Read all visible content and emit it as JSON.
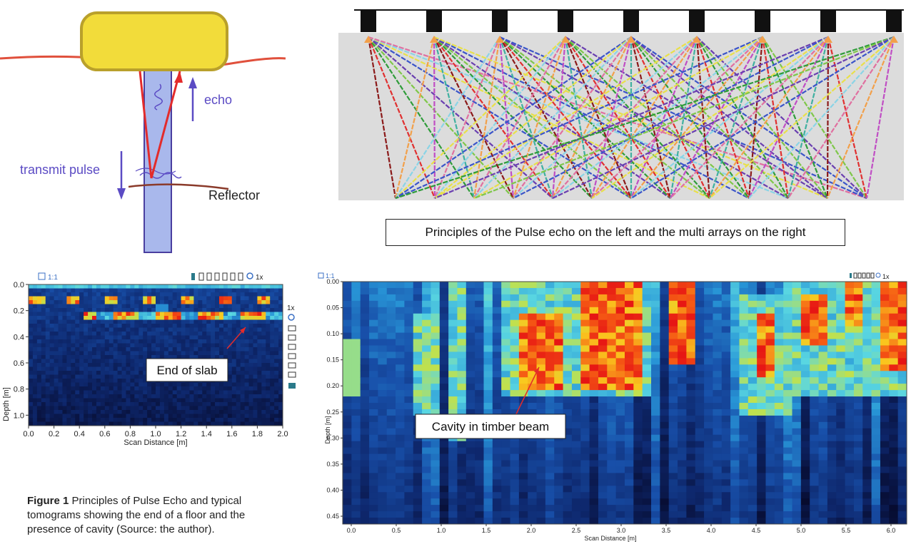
{
  "pulse_echo": {
    "labels": {
      "echo": "echo",
      "transmit": "transmit pulse",
      "reflector": "Reflector"
    },
    "colors": {
      "block": "#f2dc3a",
      "block_edge": "#b9a02b",
      "surface": "#e0503c",
      "beam": "#a9b8ec",
      "beam_edge": "#4a3fa0",
      "ray": "#e32b2b",
      "arrow": "#5b4bc4"
    }
  },
  "multi_array": {
    "sensor_count": 9,
    "colors": {
      "bar": "#111111",
      "field": "#dcdcdc",
      "source": "#f2a04a"
    },
    "ray_colors": [
      "#8b1a1a",
      "#e03030",
      "#2f9c3a",
      "#7fc74a",
      "#6a3fb0",
      "#3b55c9",
      "#e8e04a",
      "#8ad4e6",
      "#e070a0",
      "#f2a04a",
      "#c04ec4",
      "#40b0a0"
    ]
  },
  "caption": "Principles of the Pulse echo on the left and the multi arrays on the right",
  "tomo_left": {
    "scale_label": "1:1",
    "zoom_label": "1x",
    "zoom_label2": "1x",
    "xlabel": "Scan Distance [m]",
    "ylabel": "Depth [m]",
    "xticks": [
      "0.0",
      "0.2",
      "0.4",
      "0.6",
      "0.8",
      "1.0",
      "1.2",
      "1.4",
      "1.6",
      "1.8",
      "2.0"
    ],
    "yticks": [
      "0.0",
      "0.2",
      "0.4",
      "0.6",
      "0.8",
      "1.0"
    ],
    "callout": "End of slab"
  },
  "tomo_right": {
    "scale_label": "1:1",
    "zoom_label": "1x",
    "xlabel": "Scan Distance [m]",
    "ylabel": "Depth [m]",
    "xticks": [
      "0.0",
      "0.5",
      "1.0",
      "1.5",
      "2.0",
      "2.5",
      "3.0",
      "3.5",
      "4.0",
      "4.5",
      "5.0",
      "5.5",
      "6.0"
    ],
    "yticks": [
      "0.00",
      "0.05",
      "0.10",
      "0.15",
      "0.20",
      "0.25",
      "0.30",
      "0.35",
      "0.40",
      "0.45"
    ],
    "callout": "Cavity in timber beam"
  },
  "figure_caption": {
    "bold": "Figure 1",
    "text": " Principles of Pulse Echo and typical tomograms showing the end of a floor and the presence of cavity (Source: the author)."
  }
}
